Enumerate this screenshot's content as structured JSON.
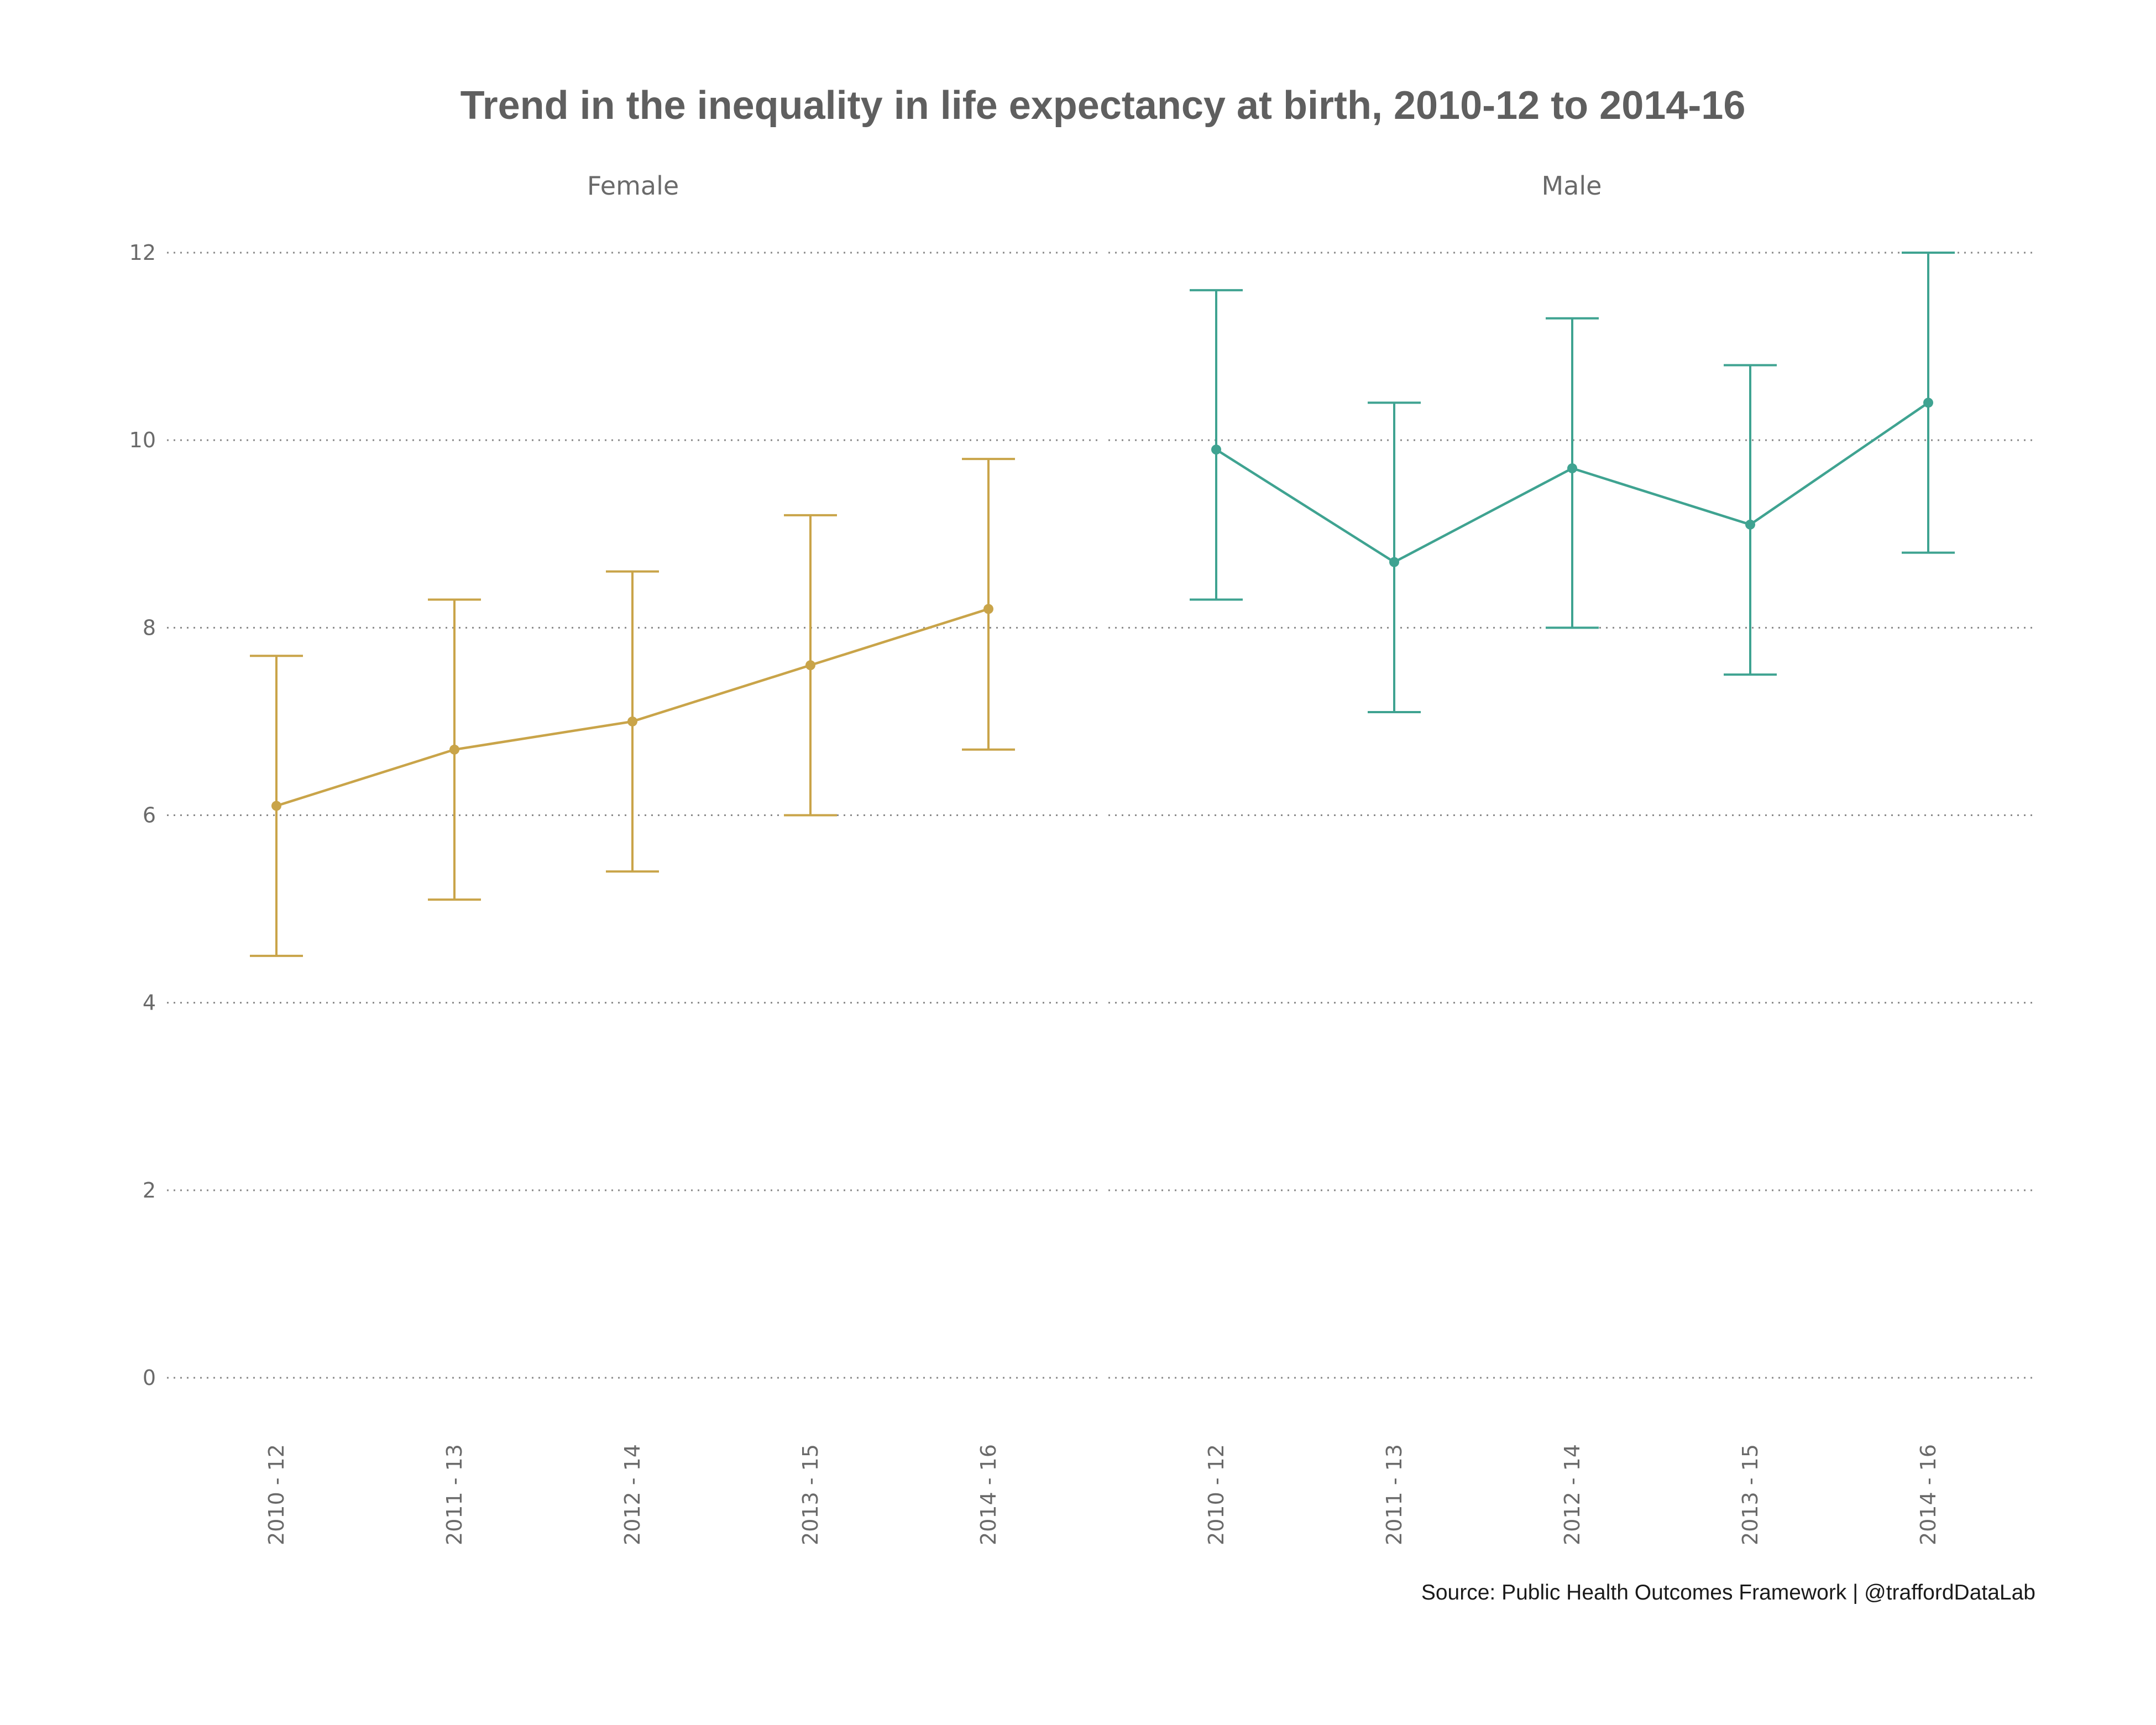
{
  "title": "Trend in the inequality in life expectancy at birth, 2010-12 to 2014-16",
  "caption": "Source: Public Health Outcomes Framework |  @traffordDataLab",
  "chart_data": {
    "type": "line",
    "error_bars": true,
    "grid": "horizontal dotted",
    "ylim": [
      0,
      12
    ],
    "yticks": [
      "0",
      "2",
      "4",
      "6",
      "8",
      "10",
      "12"
    ],
    "categories": [
      "2010 - 12",
      "2011 - 13",
      "2012 - 14",
      "2013 - 15",
      "2014 - 16"
    ],
    "panels": [
      {
        "label": "Female",
        "color": "#c9a449",
        "values": [
          6.1,
          6.7,
          7.0,
          7.6,
          8.2
        ],
        "lower": [
          4.5,
          5.1,
          5.4,
          6.0,
          6.7
        ],
        "upper": [
          7.7,
          8.3,
          8.6,
          9.2,
          9.8
        ]
      },
      {
        "label": "Male",
        "color": "#3fa391",
        "values": [
          9.9,
          8.7,
          9.7,
          9.1,
          10.4
        ],
        "lower": [
          8.3,
          7.1,
          8.0,
          7.5,
          8.8
        ],
        "upper": [
          11.6,
          10.4,
          11.3,
          10.8,
          12.0
        ]
      }
    ]
  }
}
